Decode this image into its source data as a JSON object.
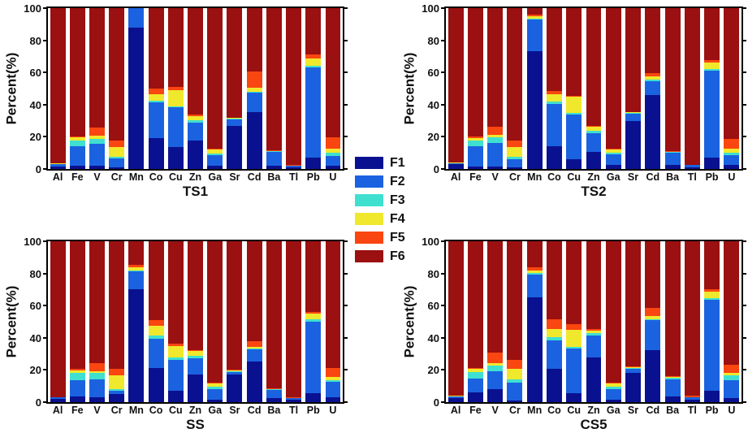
{
  "colors": {
    "F1": "#0A1190",
    "F2": "#1B62E0",
    "F3": "#3FE0D0",
    "F4": "#F0E82C",
    "F5": "#FA4610",
    "F6": "#9B1010"
  },
  "legend": {
    "labels": [
      "F1",
      "F2",
      "F3",
      "F4",
      "F5",
      "F6"
    ],
    "position": "center-between-panels"
  },
  "chart_data": [
    {
      "type": "bar",
      "stacked": true,
      "title": "TS1",
      "ylabel": "Percent(%)",
      "ylim": [
        0,
        100
      ],
      "yticks": [
        0,
        20,
        40,
        60,
        80,
        100
      ],
      "grid": false,
      "categories": [
        "Al",
        "Fe",
        "V",
        "Cr",
        "Mn",
        "Co",
        "Cu",
        "Zn",
        "Ga",
        "Sr",
        "Cd",
        "Ba",
        "Tl",
        "Pb",
        "U"
      ],
      "series": [
        {
          "name": "F1",
          "values": [
            1.5,
            2,
            2,
            1,
            88,
            19,
            13.5,
            17.5,
            2,
            27,
            35.5,
            2,
            1,
            7,
            2
          ]
        },
        {
          "name": "F2",
          "values": [
            1.5,
            12,
            13.5,
            5.5,
            12,
            22.5,
            25,
            11.5,
            6.5,
            4,
            12,
            8.5,
            1,
            56,
            6
          ]
        },
        {
          "name": "F3",
          "values": [
            0,
            3.5,
            3,
            1,
            0,
            1,
            0.5,
            1.5,
            1,
            0.5,
            0.5,
            0.5,
            0,
            1,
            2
          ]
        },
        {
          "name": "F4",
          "values": [
            0.5,
            2,
            2,
            6,
            0,
            4,
            10,
            2.5,
            2.5,
            0.5,
            2.5,
            0,
            0,
            4.5,
            2.5
          ]
        },
        {
          "name": "F5",
          "values": [
            0,
            0.5,
            5.5,
            4,
            0,
            3.5,
            2,
            1,
            0.5,
            0,
            10,
            0.5,
            0.5,
            2.5,
            7
          ]
        },
        {
          "name": "F6",
          "values": [
            96.5,
            80,
            74,
            82.5,
            0,
            50,
            49,
            66,
            87.5,
            68,
            39.5,
            88.5,
            97.5,
            29,
            80.5
          ]
        }
      ]
    },
    {
      "type": "bar",
      "stacked": true,
      "title": "TS2",
      "ylabel": "Percent(%)",
      "ylim": [
        0,
        100
      ],
      "yticks": [
        0,
        20,
        40,
        60,
        80,
        100
      ],
      "grid": false,
      "categories": [
        "Al",
        "Fe",
        "V",
        "Cr",
        "Mn",
        "Co",
        "Cu",
        "Zn",
        "Ga",
        "Sr",
        "Cd",
        "Ba",
        "Tl",
        "Pb",
        "U"
      ],
      "series": [
        {
          "name": "F1",
          "values": [
            3,
            1.5,
            1.5,
            1,
            73,
            14,
            6,
            10.5,
            2.5,
            30,
            46,
            2.5,
            1,
            7,
            2.5
          ]
        },
        {
          "name": "F2",
          "values": [
            0.5,
            12.5,
            14.5,
            5,
            20,
            26.5,
            28,
            11.5,
            6.5,
            4.5,
            8.5,
            7.5,
            1.5,
            54,
            6
          ]
        },
        {
          "name": "F3",
          "values": [
            0,
            3.5,
            3.5,
            1.5,
            0.5,
            1.5,
            1,
            1.5,
            1,
            0.5,
            1,
            0.5,
            0,
            1,
            1.5
          ]
        },
        {
          "name": "F4",
          "values": [
            0.5,
            1.5,
            1.5,
            6,
            1.5,
            4.5,
            10,
            3,
            2,
            0.5,
            2,
            0,
            0,
            4,
            2.5
          ]
        },
        {
          "name": "F5",
          "values": [
            0,
            1,
            5.5,
            4,
            1,
            2,
            0.5,
            0.5,
            0.5,
            0,
            2,
            0.5,
            0,
            1.5,
            6
          ]
        },
        {
          "name": "F6",
          "values": [
            96,
            80,
            73.5,
            82.5,
            4,
            51.5,
            54.5,
            73,
            87.5,
            64.5,
            40.5,
            89,
            97.5,
            32.5,
            81.5
          ]
        }
      ]
    },
    {
      "type": "bar",
      "stacked": true,
      "title": "SS",
      "ylabel": "Percent(%)",
      "ylim": [
        0,
        100
      ],
      "yticks": [
        0,
        20,
        40,
        60,
        80,
        100
      ],
      "grid": false,
      "categories": [
        "Al",
        "Fe",
        "V",
        "Cr",
        "Mn",
        "Co",
        "Cu",
        "Zn",
        "Ga",
        "Sr",
        "Cd",
        "Ba",
        "Tl",
        "Pb",
        "U"
      ],
      "series": [
        {
          "name": "F1",
          "values": [
            2,
            3.5,
            3,
            5,
            70,
            21,
            7,
            17,
            1.5,
            17,
            25.5,
            2.5,
            1.5,
            5.5,
            3
          ]
        },
        {
          "name": "F2",
          "values": [
            1,
            10,
            11,
            2,
            11.5,
            18.5,
            19.5,
            10.5,
            6.5,
            1.5,
            7.5,
            5,
            1,
            44.5,
            9.5
          ]
        },
        {
          "name": "F3",
          "values": [
            0,
            4.5,
            4,
            1,
            0.5,
            2,
            1.5,
            1.5,
            1.5,
            0.5,
            0.5,
            0.5,
            0,
            1.5,
            1
          ]
        },
        {
          "name": "F4",
          "values": [
            0,
            1.5,
            1,
            8.5,
            2,
            6,
            7,
            3,
            2,
            0.5,
            1,
            0,
            0,
            3.5,
            2
          ]
        },
        {
          "name": "F5",
          "values": [
            0,
            1,
            5.5,
            4,
            1.5,
            3.5,
            1.5,
            0.5,
            0.5,
            0.5,
            3.5,
            0.5,
            0.5,
            1,
            5.5
          ]
        },
        {
          "name": "F6",
          "values": [
            97,
            79.5,
            75.5,
            79.5,
            14.5,
            49,
            63.5,
            67.5,
            88,
            80,
            62,
            91.5,
            97,
            44,
            79
          ]
        }
      ]
    },
    {
      "type": "bar",
      "stacked": true,
      "title": "CS5",
      "ylabel": "Percent(%)",
      "ylim": [
        0,
        100
      ],
      "yticks": [
        0,
        20,
        40,
        60,
        80,
        100
      ],
      "grid": false,
      "categories": [
        "Al",
        "Fe",
        "V",
        "Cr",
        "Mn",
        "Co",
        "Cu",
        "Zn",
        "Ga",
        "Sr",
        "Cd",
        "Ba",
        "Tl",
        "Pb",
        "U"
      ],
      "series": [
        {
          "name": "F1",
          "values": [
            2.5,
            6,
            8,
            1,
            65,
            20.5,
            5.5,
            28,
            1.5,
            18,
            32.5,
            3.5,
            1.5,
            7,
            2.5
          ]
        },
        {
          "name": "F2",
          "values": [
            1,
            8.5,
            11,
            11,
            14.5,
            18,
            28,
            13.5,
            6.5,
            2.5,
            18.5,
            10.5,
            1.5,
            56.5,
            11
          ]
        },
        {
          "name": "F3",
          "values": [
            0,
            4,
            4,
            2,
            1,
            2,
            1,
            1.5,
            1.5,
            0.5,
            0.5,
            1,
            0,
            1,
            3
          ]
        },
        {
          "name": "F4",
          "values": [
            0.5,
            2,
            1.5,
            6.5,
            1.5,
            5,
            10.5,
            1.5,
            2,
            0.5,
            2,
            0.5,
            0,
            4,
            1.5
          ]
        },
        {
          "name": "F5",
          "values": [
            0,
            0.5,
            6.5,
            6,
            2,
            6,
            3.5,
            1,
            0.5,
            0.5,
            5,
            0.5,
            1,
            1.5,
            5.5
          ]
        },
        {
          "name": "F6",
          "values": [
            96,
            79,
            69,
            73.5,
            16,
            48.5,
            51.5,
            54.5,
            88,
            78,
            41.5,
            84,
            96,
            30,
            76.5
          ]
        }
      ]
    }
  ]
}
